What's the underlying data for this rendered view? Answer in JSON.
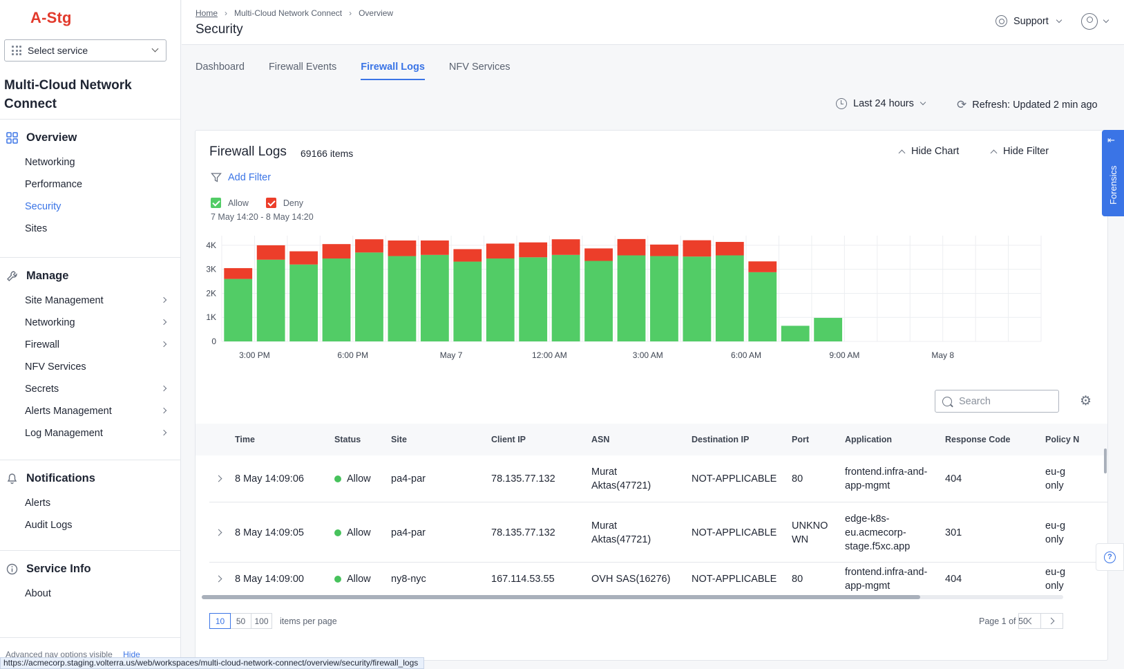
{
  "brand": "A-Stg",
  "select_service": "Select service",
  "workspace_title": "Multi-Cloud Network Connect",
  "nav": {
    "overview": {
      "label": "Overview",
      "items": [
        "Networking",
        "Performance",
        "Security",
        "Sites"
      ],
      "active": "Security"
    },
    "manage": {
      "label": "Manage",
      "items": [
        {
          "label": "Site Management",
          "arrow": true
        },
        {
          "label": "Networking",
          "arrow": true
        },
        {
          "label": "Firewall",
          "arrow": true
        },
        {
          "label": "NFV Services",
          "arrow": false
        },
        {
          "label": "Secrets",
          "arrow": true
        },
        {
          "label": "Alerts Management",
          "arrow": true
        },
        {
          "label": "Log Management",
          "arrow": true
        }
      ]
    },
    "notifications": {
      "label": "Notifications",
      "items": [
        "Alerts",
        "Audit Logs"
      ]
    },
    "service_info": {
      "label": "Service Info",
      "items": [
        "About"
      ]
    },
    "advanced": "Advanced nav options visible",
    "hide": "Hide"
  },
  "breadcrumb": [
    "Home",
    "Multi-Cloud Network Connect",
    "Overview"
  ],
  "page_title": "Security",
  "support": "Support",
  "tabs": [
    "Dashboard",
    "Firewall Events",
    "Firewall Logs",
    "NFV Services"
  ],
  "active_tab": "Firewall Logs",
  "time_range": "Last 24 hours",
  "refresh": "Refresh: Updated 2 min ago",
  "card": {
    "title": "Firewall Logs",
    "count": "69166 items",
    "hide_chart": "Hide Chart",
    "hide_filter": "Hide Filter",
    "add_filter": "Add Filter",
    "legend": [
      {
        "name": "Allow",
        "color": "#52cc66"
      },
      {
        "name": "Deny",
        "color": "#ec3e2a"
      }
    ],
    "range_label": "7 May 14:20 - 8 May 14:20"
  },
  "chart_data": {
    "type": "bar",
    "stacked": true,
    "x_ticks": [
      "3:00 PM",
      "6:00 PM",
      "May 7",
      "12:00 AM",
      "3:00 AM",
      "6:00 AM",
      "9:00 AM",
      "May 8"
    ],
    "y_ticks": [
      "0",
      "1K",
      "2K",
      "3K",
      "4K"
    ],
    "ylim": [
      0,
      4400
    ],
    "series": [
      {
        "name": "Allow",
        "color": "#52cc66",
        "values": [
          2600,
          3400,
          3200,
          3450,
          3700,
          3550,
          3600,
          3320,
          3450,
          3500,
          3600,
          3350,
          3580,
          3550,
          3530,
          3580,
          2880,
          650,
          980,
          0,
          0,
          0,
          0,
          0,
          0
        ]
      },
      {
        "name": "Deny",
        "color": "#ec3e2a",
        "values": [
          450,
          600,
          550,
          600,
          550,
          650,
          600,
          520,
          620,
          620,
          650,
          520,
          680,
          480,
          680,
          560,
          450,
          0,
          0,
          0,
          0,
          0,
          0,
          0,
          0
        ]
      }
    ],
    "grid": true
  },
  "search_placeholder": "Search",
  "table": {
    "columns": [
      "Time",
      "Status",
      "Site",
      "Client IP",
      "ASN",
      "Destination IP",
      "Port",
      "Application",
      "Response Code",
      "Policy N"
    ],
    "rows": [
      {
        "time": "8 May 14:09:06",
        "status": "Allow",
        "site": "pa4-par",
        "client_ip": "78.135.77.132",
        "asn": [
          "Murat",
          "Aktas(47721)"
        ],
        "dest": "NOT-APPLICABLE",
        "port": [
          "80"
        ],
        "app": [
          "frontend.infra-and-",
          "app-mgmt"
        ],
        "code": "404",
        "policy": [
          "eu-g",
          "only"
        ]
      },
      {
        "time": "8 May 14:09:05",
        "status": "Allow",
        "site": "pa4-par",
        "client_ip": "78.135.77.132",
        "asn": [
          "Murat",
          "Aktas(47721)"
        ],
        "dest": "NOT-APPLICABLE",
        "port": [
          "UNKNO",
          "WN"
        ],
        "app": [
          "edge-k8s-",
          "eu.acmecorp-",
          "stage.f5xc.app"
        ],
        "code": "301",
        "policy": [
          "eu-g",
          "only"
        ]
      },
      {
        "time": "8 May 14:09:00",
        "status": "Allow",
        "site": "ny8-nyc",
        "client_ip": "167.114.53.55",
        "asn": [
          "OVH SAS(16276)"
        ],
        "dest": "NOT-APPLICABLE",
        "port": [
          "80"
        ],
        "app": [
          "frontend.infra-and-",
          "app-mgmt"
        ],
        "code": "404",
        "policy": [
          "eu-g",
          "only"
        ]
      }
    ]
  },
  "pager": {
    "sizes": [
      "10",
      "50",
      "100"
    ],
    "selected": "10",
    "label": "items per page",
    "page_info": "Page 1 of 50"
  },
  "forensics": "Forensics",
  "status_url": "https://acmecorp.staging.volterra.us/web/workspaces/multi-cloud-network-connect/overview/security/firewall_logs"
}
